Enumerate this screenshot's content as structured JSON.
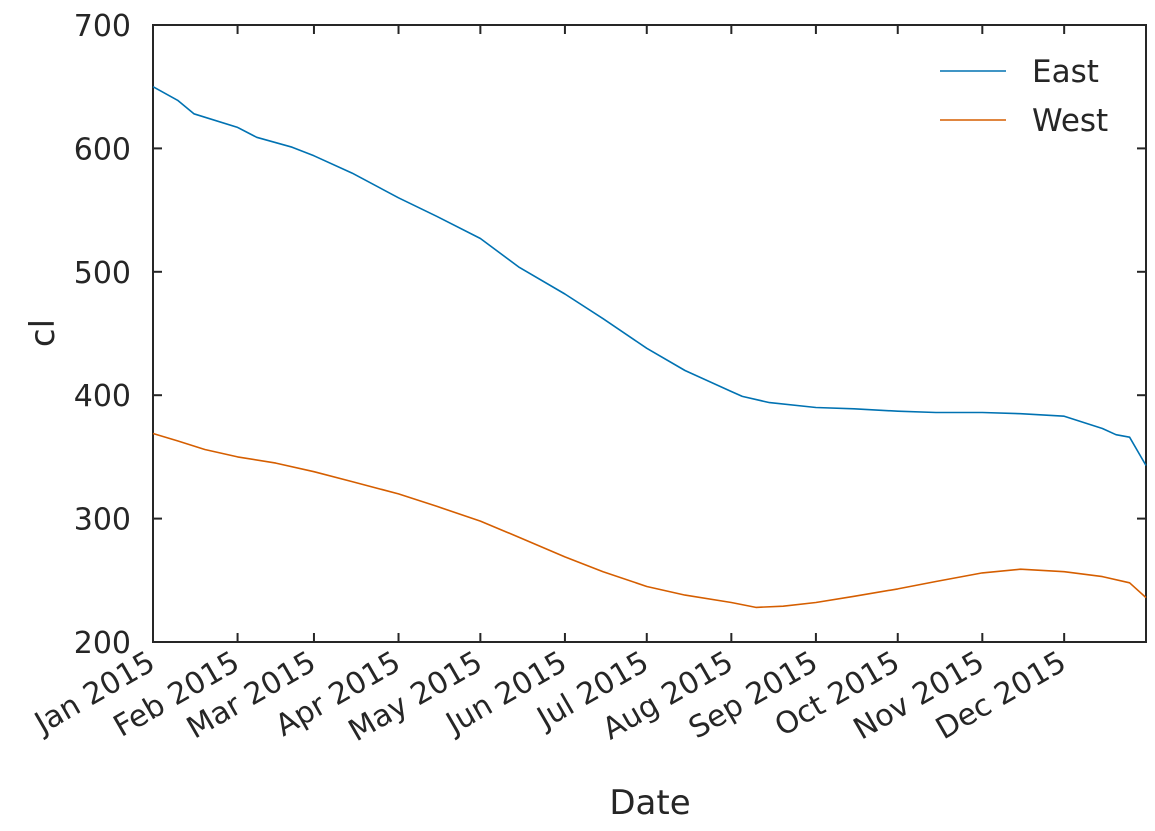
{
  "chart_data": {
    "type": "line",
    "title": "",
    "xlabel": "Date",
    "ylabel": "cl",
    "xlim": [
      "2015-01-01",
      "2015-12-31"
    ],
    "ylim": [
      200,
      700
    ],
    "yticks": [
      200,
      300,
      400,
      500,
      600,
      700
    ],
    "xticks": [
      {
        "date": "2015-01-01",
        "label": "Jan 2015"
      },
      {
        "date": "2015-02-01",
        "label": "Feb 2015"
      },
      {
        "date": "2015-03-01",
        "label": "Mar 2015"
      },
      {
        "date": "2015-04-01",
        "label": "Apr 2015"
      },
      {
        "date": "2015-05-01",
        "label": "May 2015"
      },
      {
        "date": "2015-06-01",
        "label": "Jun 2015"
      },
      {
        "date": "2015-07-01",
        "label": "Jul 2015"
      },
      {
        "date": "2015-08-01",
        "label": "Aug 2015"
      },
      {
        "date": "2015-09-01",
        "label": "Sep 2015"
      },
      {
        "date": "2015-10-01",
        "label": "Oct 2015"
      },
      {
        "date": "2015-11-01",
        "label": "Nov 2015"
      },
      {
        "date": "2015-12-01",
        "label": "Dec 2015"
      }
    ],
    "grid": false,
    "legend_position": "top-right",
    "series": [
      {
        "name": "East",
        "color": "#0072B2",
        "points": [
          [
            "2015-01-01",
            650
          ],
          [
            "2015-01-10",
            639
          ],
          [
            "2015-01-16",
            628
          ],
          [
            "2015-02-01",
            617
          ],
          [
            "2015-02-08",
            609
          ],
          [
            "2015-02-21",
            601
          ],
          [
            "2015-03-01",
            594
          ],
          [
            "2015-03-15",
            580
          ],
          [
            "2015-04-01",
            560
          ],
          [
            "2015-04-15",
            545
          ],
          [
            "2015-05-01",
            527
          ],
          [
            "2015-05-15",
            504
          ],
          [
            "2015-06-01",
            482
          ],
          [
            "2015-06-15",
            462
          ],
          [
            "2015-07-01",
            438
          ],
          [
            "2015-07-15",
            420
          ],
          [
            "2015-08-01",
            403
          ],
          [
            "2015-08-05",
            399
          ],
          [
            "2015-08-15",
            394
          ],
          [
            "2015-09-01",
            390
          ],
          [
            "2015-09-15",
            389
          ],
          [
            "2015-10-01",
            387
          ],
          [
            "2015-10-15",
            386
          ],
          [
            "2015-11-01",
            386
          ],
          [
            "2015-11-15",
            385
          ],
          [
            "2015-12-01",
            383
          ],
          [
            "2015-12-15",
            373
          ],
          [
            "2015-12-20",
            368
          ],
          [
            "2015-12-25",
            366
          ],
          [
            "2015-12-31",
            343
          ]
        ]
      },
      {
        "name": "West",
        "color": "#D55E00",
        "points": [
          [
            "2015-01-01",
            369
          ],
          [
            "2015-01-10",
            363
          ],
          [
            "2015-01-20",
            356
          ],
          [
            "2015-02-01",
            350
          ],
          [
            "2015-02-15",
            345
          ],
          [
            "2015-03-01",
            338
          ],
          [
            "2015-03-15",
            330
          ],
          [
            "2015-04-01",
            320
          ],
          [
            "2015-04-15",
            310
          ],
          [
            "2015-05-01",
            298
          ],
          [
            "2015-05-15",
            285
          ],
          [
            "2015-06-01",
            269
          ],
          [
            "2015-06-15",
            257
          ],
          [
            "2015-07-01",
            245
          ],
          [
            "2015-07-15",
            238
          ],
          [
            "2015-08-01",
            232
          ],
          [
            "2015-08-10",
            228
          ],
          [
            "2015-08-20",
            229
          ],
          [
            "2015-09-01",
            232
          ],
          [
            "2015-09-15",
            237
          ],
          [
            "2015-10-01",
            243
          ],
          [
            "2015-10-15",
            249
          ],
          [
            "2015-11-01",
            256
          ],
          [
            "2015-11-15",
            259
          ],
          [
            "2015-12-01",
            257
          ],
          [
            "2015-12-15",
            253
          ],
          [
            "2015-12-25",
            248
          ],
          [
            "2015-12-31",
            236
          ]
        ]
      }
    ]
  }
}
